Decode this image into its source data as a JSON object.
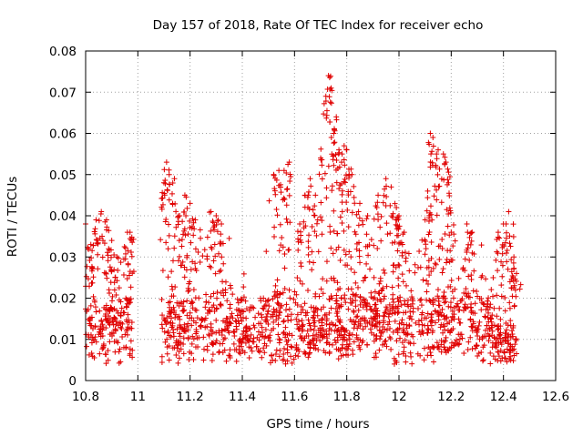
{
  "chart_data": {
    "type": "scatter",
    "title": "Day 157 of 2018, Rate Of TEC Index for receiver echo",
    "xlabel": "GPS time / hours",
    "ylabel": "ROTI / TECUs",
    "xlim": [
      10.8,
      12.6
    ],
    "ylim": [
      0,
      0.08
    ],
    "xticks": [
      "10.8",
      "11",
      "11.2",
      "11.4",
      "11.6",
      "11.8",
      "12",
      "12.2",
      "12.4",
      "12.6"
    ],
    "yticks": [
      "0",
      "0.01",
      "0.02",
      "0.03",
      "0.04",
      "0.05",
      "0.06",
      "0.07",
      "0.08"
    ],
    "grid": true,
    "marker": "+",
    "color": "#e00000",
    "series": [
      {
        "name": "ROTI",
        "segments": [
          {
            "x_range": [
              10.8,
              10.98
            ],
            "baseline": 0.012,
            "spread": 0.008,
            "count": 170
          },
          {
            "x_range": [
              11.09,
              12.45
            ],
            "baseline": 0.013,
            "spread": 0.009,
            "count": 1300
          }
        ],
        "highlights": [
          [
            10.8,
            0.038
          ],
          [
            10.82,
            0.033
          ],
          [
            10.84,
            0.039
          ],
          [
            10.86,
            0.041
          ],
          [
            10.88,
            0.039
          ],
          [
            10.9,
            0.034
          ],
          [
            10.92,
            0.03
          ],
          [
            10.96,
            0.036
          ],
          [
            10.97,
            0.036
          ],
          [
            11.1,
            0.048
          ],
          [
            11.11,
            0.053
          ],
          [
            11.12,
            0.05
          ],
          [
            11.14,
            0.049
          ],
          [
            11.16,
            0.04
          ],
          [
            11.18,
            0.045
          ],
          [
            11.2,
            0.043
          ],
          [
            11.22,
            0.039
          ],
          [
            11.28,
            0.041
          ],
          [
            11.3,
            0.04
          ],
          [
            11.32,
            0.038
          ],
          [
            11.52,
            0.05
          ],
          [
            11.54,
            0.051
          ],
          [
            11.56,
            0.051
          ],
          [
            11.58,
            0.053
          ],
          [
            11.62,
            0.038
          ],
          [
            11.64,
            0.045
          ],
          [
            11.66,
            0.049
          ],
          [
            11.68,
            0.045
          ],
          [
            11.7,
            0.054
          ],
          [
            11.72,
            0.069
          ],
          [
            11.73,
            0.074
          ],
          [
            11.74,
            0.071
          ],
          [
            11.75,
            0.06
          ],
          [
            11.76,
            0.064
          ],
          [
            11.77,
            0.056
          ],
          [
            11.78,
            0.053
          ],
          [
            11.79,
            0.057
          ],
          [
            11.8,
            0.056
          ],
          [
            11.82,
            0.05
          ],
          [
            11.85,
            0.043
          ],
          [
            11.88,
            0.04
          ],
          [
            11.92,
            0.045
          ],
          [
            11.95,
            0.049
          ],
          [
            11.97,
            0.047
          ],
          [
            11.99,
            0.042
          ],
          [
            12.0,
            0.04
          ],
          [
            12.02,
            0.036
          ],
          [
            12.1,
            0.039
          ],
          [
            12.11,
            0.046
          ],
          [
            12.12,
            0.06
          ],
          [
            12.13,
            0.059
          ],
          [
            12.15,
            0.056
          ],
          [
            12.17,
            0.055
          ],
          [
            12.18,
            0.053
          ],
          [
            12.19,
            0.048
          ],
          [
            12.2,
            0.036
          ],
          [
            12.26,
            0.038
          ],
          [
            12.28,
            0.036
          ],
          [
            12.38,
            0.036
          ],
          [
            12.4,
            0.038
          ],
          [
            12.42,
            0.041
          ],
          [
            12.44,
            0.03
          ],
          [
            12.45,
            0.026
          ]
        ]
      }
    ]
  }
}
